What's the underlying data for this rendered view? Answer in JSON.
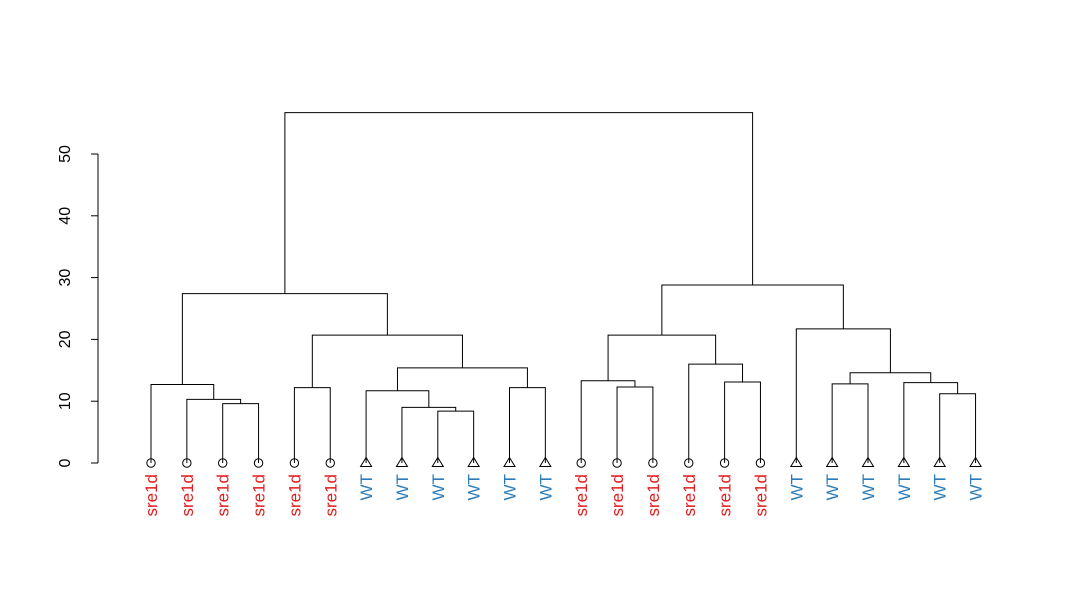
{
  "chart_data": {
    "type": "dendrogram",
    "title": "",
    "xlabel": "",
    "ylabel": "",
    "ylim": [
      0,
      50
    ],
    "yticks": [
      "0",
      "10",
      "20",
      "30",
      "40",
      "50"
    ],
    "groups": {
      "sre1d": {
        "color": "#e31a1c",
        "marker": "circle"
      },
      "WT": {
        "color": "#2b7bb9",
        "marker": "triangle"
      }
    },
    "leaves": [
      "sre1d",
      "sre1d",
      "sre1d",
      "sre1d",
      "sre1d",
      "sre1d",
      "WT",
      "WT",
      "WT",
      "WT",
      "WT",
      "WT",
      "sre1d",
      "sre1d",
      "sre1d",
      "sre1d",
      "sre1d",
      "sre1d",
      "WT",
      "WT",
      "WT",
      "WT",
      "WT",
      "WT"
    ],
    "merges": [
      {
        "a": "L2",
        "b": "L3",
        "height": 9.6
      },
      {
        "a": "L1",
        "b": "M0",
        "height": 10.3
      },
      {
        "a": "L0",
        "b": "M1",
        "height": 12.7
      },
      {
        "a": "L4",
        "b": "L5",
        "height": 12.2
      },
      {
        "a": "L8",
        "b": "L9",
        "height": 8.4
      },
      {
        "a": "L7",
        "b": "M4",
        "height": 9.0
      },
      {
        "a": "L6",
        "b": "M5",
        "height": 11.7
      },
      {
        "a": "L10",
        "b": "L11",
        "height": 12.2
      },
      {
        "a": "M6",
        "b": "M7",
        "height": 15.4
      },
      {
        "a": "M3",
        "b": "M8",
        "height": 20.7
      },
      {
        "a": "M2",
        "b": "M9",
        "height": 27.4
      },
      {
        "a": "L13",
        "b": "L14",
        "height": 12.3
      },
      {
        "a": "L12",
        "b": "M11",
        "height": 13.3
      },
      {
        "a": "L16",
        "b": "L17",
        "height": 13.1
      },
      {
        "a": "L15",
        "b": "M13",
        "height": 16.0
      },
      {
        "a": "M12",
        "b": "M14",
        "height": 20.7
      },
      {
        "a": "L19",
        "b": "L20",
        "height": 12.8
      },
      {
        "a": "L22",
        "b": "L23",
        "height": 11.2
      },
      {
        "a": "L21",
        "b": "M17",
        "height": 13.0
      },
      {
        "a": "M16",
        "b": "M18",
        "height": 14.6
      },
      {
        "a": "L18",
        "b": "M19",
        "height": 21.7
      },
      {
        "a": "M15",
        "b": "M20",
        "height": 28.8
      },
      {
        "a": "M10",
        "b": "M21",
        "height": 56.7
      }
    ]
  }
}
